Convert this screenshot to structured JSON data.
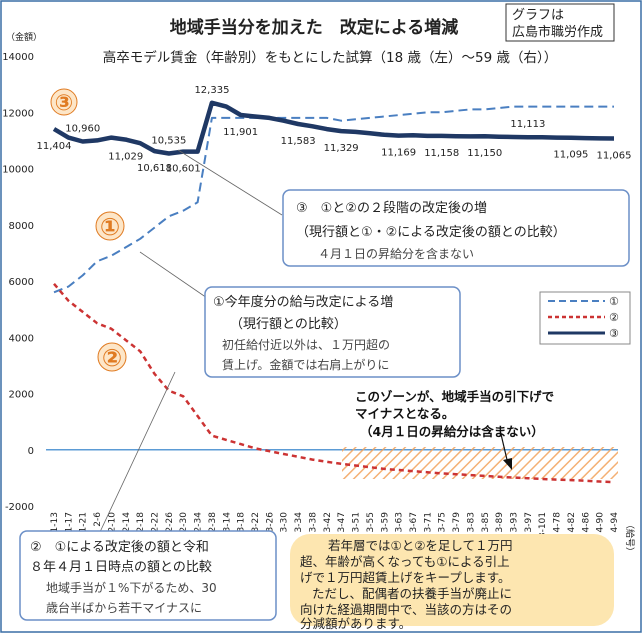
{
  "chart_data": {
    "type": "line",
    "title": "地域手当分を加えた　改定による増減",
    "subtitle": "高卒モデル賃金（年齢別）をもとにした試算（18 歳（左）〜59 歳（右））",
    "source_note": "グラフは\n広島市職労作成",
    "ylabel": "（金額）",
    "xlabel": "（給号）",
    "ylim": [
      -2000,
      14000
    ],
    "yticks": [
      "14000",
      "12000",
      "10000",
      "8000",
      "6000",
      "4000",
      "2000",
      "0",
      "-2000"
    ],
    "grid": false,
    "legend_position": "right",
    "categories": [
      "1-13",
      "1-17",
      "1-21",
      "2-6",
      "2-10",
      "2-14",
      "2-18",
      "2-22",
      "2-26",
      "2-30",
      "2-34",
      "2-38",
      "3-14",
      "3-18",
      "3-22",
      "3-26",
      "3-30",
      "3-34",
      "3-38",
      "3-42",
      "3-47",
      "3-51",
      "3-55",
      "3-59",
      "3-63",
      "3-67",
      "3-71",
      "3-75",
      "3-79",
      "3-83",
      "3-85",
      "3-89",
      "3-93",
      "3-97",
      "3-101",
      "4-78",
      "4-82",
      "4-86",
      "4-90",
      "4-94"
    ],
    "series": [
      {
        "name": "①",
        "color": "#4a7fc1",
        "style": "dashed",
        "values": [
          5600,
          5800,
          6200,
          6700,
          6900,
          7200,
          7500,
          7900,
          8300,
          8500,
          8800,
          11800,
          11800,
          11800,
          11800,
          11800,
          11800,
          11800,
          11800,
          11800,
          11700,
          11750,
          11800,
          11850,
          11900,
          11950,
          12000,
          12000,
          12050,
          12100,
          12100,
          12150,
          12200,
          12200,
          12200,
          12200,
          12200,
          12200,
          12200,
          12200
        ]
      },
      {
        "name": "②",
        "color": "#cc3333",
        "style": "dashed",
        "values": [
          5900,
          5300,
          4900,
          4500,
          4300,
          3900,
          3500,
          2700,
          2100,
          1900,
          1200,
          500,
          350,
          200,
          50,
          -50,
          -150,
          -250,
          -350,
          -430,
          -500,
          -560,
          -620,
          -680,
          -720,
          -760,
          -800,
          -840,
          -870,
          -900,
          -930,
          -960,
          -990,
          -1010,
          -1040,
          -1060,
          -1080,
          -1100,
          -1130,
          -1150
        ]
      },
      {
        "name": "③",
        "color": "#1f3864",
        "style": "solid",
        "values": [
          11404,
          11100,
          10960,
          11000,
          11100,
          11029,
          10900,
          10618,
          10535,
          10601,
          10600,
          12335,
          12200,
          11901,
          11850,
          11800,
          11700,
          11583,
          11500,
          11400,
          11329,
          11300,
          11250,
          11200,
          11169,
          11180,
          11160,
          11158,
          11150,
          11140,
          11150,
          11130,
          11120,
          11113,
          11110,
          11100,
          11095,
          11080,
          11070,
          11065
        ]
      }
    ],
    "data_labels": [
      {
        "text": "11,404",
        "index": 0,
        "value": 11404,
        "pos": "below"
      },
      {
        "text": "10,960",
        "index": 2,
        "value": 10960,
        "pos": "above"
      },
      {
        "text": "11,029",
        "index": 5,
        "value": 11029,
        "pos": "below"
      },
      {
        "text": "10,618",
        "index": 7,
        "value": 10618,
        "pos": "below"
      },
      {
        "text": "10,535",
        "index": 8,
        "value": 10535,
        "pos": "above"
      },
      {
        "text": "10,601",
        "index": 9,
        "value": 10601,
        "pos": "below"
      },
      {
        "text": "12,335",
        "index": 11,
        "value": 12335,
        "pos": "above"
      },
      {
        "text": "11,901",
        "index": 13,
        "value": 11901,
        "pos": "below"
      },
      {
        "text": "11,583",
        "index": 17,
        "value": 11583,
        "pos": "below"
      },
      {
        "text": "11,329",
        "index": 20,
        "value": 11329,
        "pos": "below"
      },
      {
        "text": "11,169",
        "index": 24,
        "value": 11169,
        "pos": "below"
      },
      {
        "text": "11,158",
        "index": 27,
        "value": 11158,
        "pos": "below"
      },
      {
        "text": "11,113",
        "index": 33,
        "value": 11113,
        "pos": "above"
      },
      {
        "text": "11,150",
        "index": 30,
        "value": 11150,
        "pos": "below"
      },
      {
        "text": "11,095",
        "index": 36,
        "value": 11095,
        "pos": "below"
      },
      {
        "text": "11,065",
        "index": 39,
        "value": 11065,
        "pos": "below"
      }
    ],
    "markers": {
      "m1": "③",
      "m2": "①",
      "m3": "②"
    },
    "annotations": {
      "box3": [
        "③　①と②の２段階の改定後の増",
        "（現行額と①・②による改定後の額との比較）",
        "４月１日の昇給分を含まない"
      ],
      "box1": [
        "①今年度分の給与改定による増",
        "（現行額との比較）",
        "初任給付近以外は、１万円超の",
        "賃上げ。金額では右肩上がりに"
      ],
      "box2": [
        "②　①による改定後の額と令和",
        "８年４月１日時点の額との比較",
        "地域手当が１%下がるため、30",
        "歳台半ばから若干マイナスに"
      ],
      "zone": [
        "このゾーンが、地域手当の引下げで",
        "マイナスとなる。",
        "（4月１日の昇給分は含まない）"
      ],
      "note": [
        "若年層では①と②を足して１万円",
        "超、年齢が高くなっても①による引上",
        "げで１万円超賃上げをキープします。",
        "ただし、配偶者の扶養手当が廃止に",
        "向けた経過期間中で、当該の方はその",
        "分減額があります。"
      ]
    }
  }
}
